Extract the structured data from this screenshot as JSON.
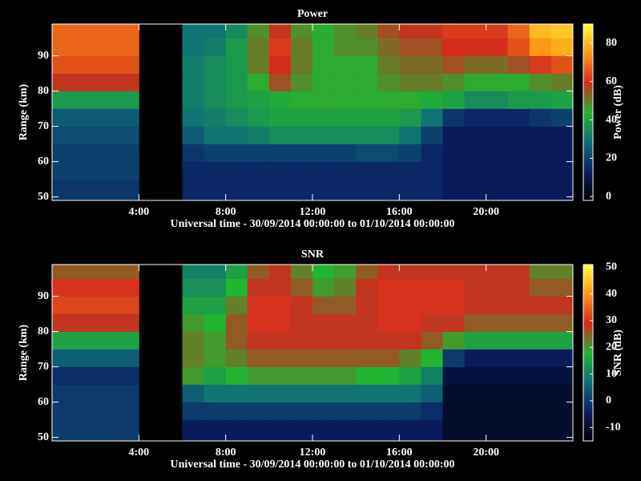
{
  "chart_data": [
    {
      "type": "heatmap",
      "title": "Power",
      "xlabel": "Universal time - 30/09/2014 00:00:00 to 01/10/2014 00:00:00",
      "ylabel": "Range (km)",
      "xlim": [
        0,
        24
      ],
      "xticks": [
        {
          "value": 4,
          "label": "4:00"
        },
        {
          "value": 8,
          "label": "8:00"
        },
        {
          "value": 12,
          "label": "12:00"
        },
        {
          "value": 16,
          "label": "16:00"
        },
        {
          "value": 20,
          "label": "20:00"
        }
      ],
      "ylim": [
        49,
        99
      ],
      "yticks": [
        50,
        60,
        70,
        80,
        90
      ],
      "xbins": [
        0,
        1,
        2,
        3,
        4,
        5,
        6,
        7,
        8,
        9,
        10,
        11,
        12,
        13,
        14,
        15,
        16,
        17,
        18,
        19,
        20,
        21,
        22,
        23,
        24
      ],
      "ybins": [
        49,
        55,
        60,
        65,
        70,
        75,
        80,
        85,
        90,
        95,
        99
      ],
      "colorbar_label": "Power (dB)",
      "clim": [
        -2,
        90
      ],
      "cticks": [
        0,
        20,
        40,
        60,
        80
      ],
      "colormap": [
        "#000000",
        "#0a1e64",
        "#0f6e78",
        "#23b432",
        "#d2281e",
        "#ff9614",
        "#ffff3c"
      ],
      "z": [
        [
          18,
          18,
          18,
          18,
          null,
          null,
          15,
          15,
          15,
          15,
          15,
          15,
          15,
          15,
          15,
          15,
          15,
          15,
          12,
          12,
          12,
          12,
          12,
          12
        ],
        [
          20,
          20,
          20,
          20,
          null,
          null,
          15,
          15,
          15,
          15,
          15,
          15,
          15,
          15,
          15,
          15,
          15,
          15,
          12,
          12,
          12,
          12,
          12,
          12
        ],
        [
          20,
          20,
          20,
          20,
          null,
          null,
          18,
          20,
          20,
          20,
          20,
          20,
          20,
          20,
          22,
          22,
          20,
          15,
          12,
          12,
          12,
          12,
          12,
          12
        ],
        [
          22,
          22,
          22,
          22,
          null,
          null,
          25,
          30,
          30,
          32,
          35,
          35,
          35,
          35,
          35,
          35,
          30,
          20,
          12,
          12,
          12,
          12,
          12,
          12
        ],
        [
          25,
          25,
          25,
          25,
          null,
          null,
          30,
          32,
          35,
          38,
          40,
          40,
          40,
          40,
          40,
          40,
          38,
          30,
          18,
          15,
          15,
          15,
          18,
          20
        ],
        [
          38,
          38,
          38,
          38,
          null,
          null,
          32,
          35,
          38,
          40,
          42,
          45,
          45,
          45,
          45,
          45,
          45,
          42,
          40,
          35,
          35,
          38,
          38,
          40
        ],
        [
          58,
          58,
          58,
          58,
          null,
          null,
          32,
          35,
          38,
          45,
          55,
          48,
          45,
          45,
          45,
          48,
          50,
          50,
          48,
          45,
          45,
          45,
          48,
          50
        ],
        [
          65,
          65,
          65,
          65,
          null,
          null,
          32,
          35,
          38,
          50,
          60,
          50,
          45,
          45,
          45,
          50,
          52,
          52,
          55,
          52,
          52,
          55,
          62,
          65
        ],
        [
          68,
          68,
          68,
          68,
          null,
          null,
          30,
          32,
          38,
          50,
          62,
          50,
          45,
          48,
          48,
          52,
          55,
          55,
          60,
          60,
          60,
          65,
          75,
          78
        ],
        [
          68,
          68,
          68,
          68,
          null,
          null,
          30,
          30,
          35,
          48,
          58,
          48,
          45,
          48,
          50,
          55,
          58,
          58,
          62,
          62,
          62,
          68,
          80,
          82
        ]
      ]
    },
    {
      "type": "heatmap",
      "title": "SNR",
      "xlabel": "Universal time - 30/09/2014 00:00:00 to 01/10/2014 00:00:00",
      "ylabel": "Range (km)",
      "xlim": [
        0,
        24
      ],
      "xticks": [
        {
          "value": 4,
          "label": "4:00"
        },
        {
          "value": 8,
          "label": "8:00"
        },
        {
          "value": 12,
          "label": "12:00"
        },
        {
          "value": 16,
          "label": "16:00"
        },
        {
          "value": 20,
          "label": "20:00"
        }
      ],
      "ylim": [
        49,
        99
      ],
      "yticks": [
        50,
        60,
        70,
        80,
        90
      ],
      "xbins": [
        0,
        1,
        2,
        3,
        4,
        5,
        6,
        7,
        8,
        9,
        10,
        11,
        12,
        13,
        14,
        15,
        16,
        17,
        18,
        19,
        20,
        21,
        22,
        23,
        24
      ],
      "ybins": [
        49,
        55,
        60,
        65,
        70,
        75,
        80,
        85,
        90,
        95,
        99
      ],
      "colorbar_label": "SNR (dB)",
      "clim": [
        -15,
        51
      ],
      "cticks": [
        -10,
        0,
        10,
        20,
        30,
        40,
        50
      ],
      "colormap": [
        "#000000",
        "#0a1e64",
        "#0f6e78",
        "#23b432",
        "#d2281e",
        "#ff9614",
        "#ffff3c"
      ],
      "z": [
        [
          0,
          0,
          0,
          0,
          null,
          null,
          -5,
          -5,
          -5,
          -5,
          -5,
          -5,
          -5,
          -5,
          -5,
          -5,
          -5,
          -5,
          -10,
          -10,
          -10,
          -10,
          -10,
          -10
        ],
        [
          0,
          0,
          0,
          0,
          null,
          null,
          0,
          0,
          0,
          0,
          0,
          0,
          0,
          0,
          0,
          0,
          0,
          -2,
          -10,
          -10,
          -10,
          -10,
          -10,
          -10
        ],
        [
          0,
          0,
          0,
          0,
          null,
          null,
          5,
          8,
          8,
          8,
          8,
          8,
          8,
          8,
          8,
          8,
          8,
          5,
          -10,
          -10,
          -10,
          -10,
          -10,
          -10
        ],
        [
          -2,
          -2,
          -2,
          -2,
          null,
          null,
          20,
          15,
          18,
          20,
          20,
          20,
          20,
          20,
          18,
          18,
          15,
          10,
          -8,
          -8,
          -8,
          -8,
          -8,
          -8
        ],
        [
          5,
          5,
          5,
          5,
          null,
          null,
          22,
          20,
          22,
          25,
          25,
          25,
          25,
          25,
          25,
          25,
          22,
          18,
          0,
          -5,
          -5,
          -5,
          -5,
          -5
        ],
        [
          15,
          15,
          15,
          15,
          null,
          null,
          22,
          20,
          25,
          28,
          28,
          28,
          28,
          28,
          28,
          28,
          28,
          25,
          20,
          15,
          15,
          15,
          15,
          15
        ],
        [
          28,
          28,
          28,
          28,
          null,
          null,
          20,
          18,
          25,
          30,
          30,
          28,
          28,
          28,
          28,
          30,
          30,
          28,
          28,
          25,
          25,
          25,
          25,
          25
        ],
        [
          32,
          32,
          32,
          32,
          null,
          null,
          15,
          15,
          22,
          30,
          30,
          28,
          25,
          25,
          28,
          30,
          30,
          30,
          30,
          28,
          28,
          28,
          28,
          28
        ],
        [
          30,
          30,
          30,
          30,
          null,
          null,
          12,
          12,
          18,
          28,
          28,
          25,
          20,
          22,
          28,
          30,
          30,
          30,
          30,
          28,
          28,
          28,
          25,
          25
        ],
        [
          25,
          25,
          25,
          25,
          null,
          null,
          10,
          10,
          15,
          25,
          28,
          22,
          18,
          20,
          25,
          28,
          28,
          28,
          28,
          28,
          28,
          28,
          22,
          22
        ]
      ]
    }
  ]
}
